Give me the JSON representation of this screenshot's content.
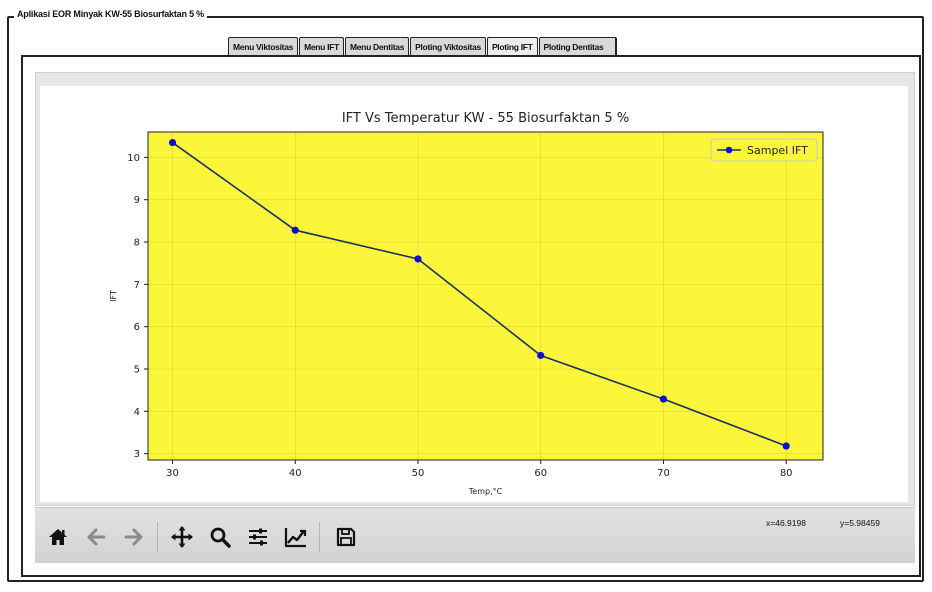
{
  "window": {
    "group_title": "Aplikasi EOR Minyak KW-55 Biosurfaktan 5 %"
  },
  "tabs": [
    {
      "label": "Menu Viktositas"
    },
    {
      "label": "Menu IFT"
    },
    {
      "label": "Menu Dentitas"
    },
    {
      "label": "Ploting Viktositas"
    },
    {
      "label": "Ploting IFT"
    },
    {
      "label": "Ploting Dentitas"
    }
  ],
  "active_tab": "Ploting IFT",
  "chart_data": {
    "type": "line",
    "title": "IFT Vs Temperatur KW - 55 Biosurfaktan 5 %",
    "xlabel": "Temp,°C",
    "ylabel": "IFT",
    "xlim": [
      28,
      83
    ],
    "ylim": [
      2.85,
      10.6
    ],
    "xticks": [
      30,
      40,
      50,
      60,
      70,
      80
    ],
    "yticks": [
      3,
      4,
      5,
      6,
      7,
      8,
      9,
      10
    ],
    "grid": true,
    "legend_position": "top-right",
    "background_color": "#fcf63a",
    "series": [
      {
        "name": "Sampel IFT",
        "x": [
          30,
          40,
          50,
          60,
          70,
          80
        ],
        "values": [
          10.35,
          8.28,
          7.6,
          5.32,
          4.29,
          3.18
        ],
        "line_color": "#1c2f66",
        "marker_color": "#1010c8"
      }
    ]
  },
  "toolbar": {
    "buttons": [
      {
        "icon": "home-icon"
      },
      {
        "icon": "back-arrow-icon"
      },
      {
        "icon": "forward-arrow-icon"
      },
      {
        "icon": "pan-move-icon"
      },
      {
        "icon": "zoom-magnifier-icon"
      },
      {
        "icon": "configure-subplots-icon"
      },
      {
        "icon": "edit-axis-icon"
      },
      {
        "icon": "save-floppy-icon"
      }
    ],
    "coord_x": "x=46.9198",
    "coord_y": "y=5.98459"
  }
}
